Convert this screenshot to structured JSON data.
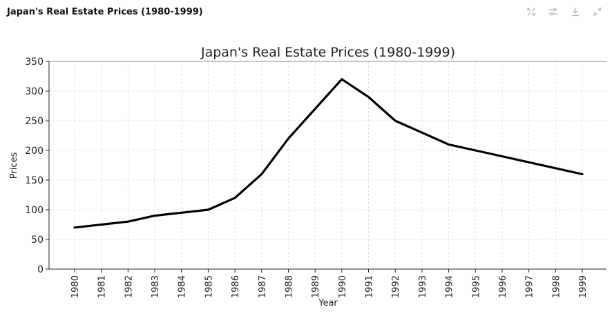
{
  "header": {
    "title": "Japan's Real Estate Prices (1980-1999)"
  },
  "toolbar": {
    "icons": [
      "expand-arrows-icon",
      "sliders-icon",
      "download-icon",
      "collapse-icon"
    ]
  },
  "chart_data": {
    "type": "line",
    "title": "Japan's Real Estate Prices (1980-1999)",
    "xlabel": "Year",
    "ylabel": "Prices",
    "ylim": [
      0,
      350
    ],
    "yticks": [
      0,
      50,
      100,
      150,
      200,
      250,
      300,
      350
    ],
    "grid": true,
    "line_color": "#000000",
    "categories": [
      "1980",
      "1981",
      "1982",
      "1983",
      "1984",
      "1985",
      "1986",
      "1987",
      "1988",
      "1989",
      "1990",
      "1991",
      "1992",
      "1993",
      "1994",
      "1995",
      "1996",
      "1997",
      "1998",
      "1999"
    ],
    "series": [
      {
        "values": [
          70,
          75,
          80,
          90,
          95,
          100,
          120,
          160,
          220,
          270,
          320,
          290,
          250,
          230,
          210,
          200,
          190,
          180,
          170,
          160
        ]
      }
    ]
  }
}
